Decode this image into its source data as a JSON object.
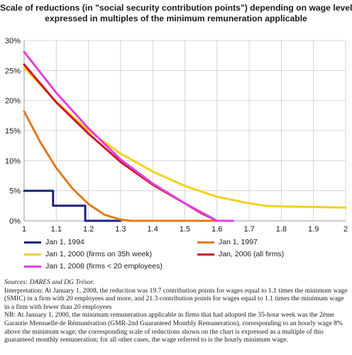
{
  "title_line1": "Scale of reductions (in \"social security contribution points\") depending on wage level,",
  "title_line2": "expressed in multiples of the minimum remuneration applicable",
  "chart_data": {
    "type": "line",
    "xlim": [
      1,
      2
    ],
    "ylim": [
      0,
      30
    ],
    "x_ticks": [
      "1",
      "1.1",
      "1.2",
      "1.3",
      "1.4",
      "1.5",
      "1.6",
      "1.7",
      "1.8",
      "1.9",
      "2"
    ],
    "y_ticks": [
      "0%",
      "5%",
      "10%",
      "15%",
      "20%",
      "25%",
      "30%"
    ],
    "grid": true,
    "legend_position": "bottom",
    "series": [
      {
        "name": "Jan 1, 1994",
        "color": "#1a237e",
        "points": [
          [
            1.0,
            5.0
          ],
          [
            1.09,
            5.0
          ],
          [
            1.09,
            2.5
          ],
          [
            1.19,
            2.5
          ],
          [
            1.19,
            0.0
          ],
          [
            1.3,
            0.0
          ]
        ]
      },
      {
        "name": "Jan 1, 1997",
        "color": "#e07b1a",
        "points": [
          [
            1.0,
            18.2
          ],
          [
            1.05,
            13.1
          ],
          [
            1.1,
            8.8
          ],
          [
            1.15,
            5.4
          ],
          [
            1.2,
            2.8
          ],
          [
            1.25,
            1.0
          ],
          [
            1.3,
            0.2
          ],
          [
            1.33,
            0.0
          ],
          [
            1.6,
            0.0
          ]
        ]
      },
      {
        "name": "Jan 1, 2000 (firms on 35h week)",
        "color": "#f2d21e",
        "points": [
          [
            1.0,
            25.5
          ],
          [
            1.1,
            19.8
          ],
          [
            1.2,
            15.0
          ],
          [
            1.3,
            11.2
          ],
          [
            1.4,
            8.2
          ],
          [
            1.5,
            5.8
          ],
          [
            1.6,
            4.0
          ],
          [
            1.7,
            2.9
          ],
          [
            1.75,
            2.5
          ],
          [
            1.8,
            2.4
          ],
          [
            1.9,
            2.3
          ],
          [
            2.0,
            2.2
          ]
        ]
      },
      {
        "name": "Jan, 2006 (all firms)",
        "color": "#d0142a",
        "points": [
          [
            1.0,
            26.0
          ],
          [
            1.1,
            19.7
          ],
          [
            1.2,
            14.5
          ],
          [
            1.3,
            9.8
          ],
          [
            1.4,
            6.0
          ],
          [
            1.5,
            2.9
          ],
          [
            1.55,
            1.3
          ],
          [
            1.6,
            0.0
          ]
        ]
      },
      {
        "name": "Jan 1,  2008 (firms < 20 employees)",
        "color": "#e040e0",
        "points": [
          [
            1.0,
            28.1
          ],
          [
            1.1,
            21.3
          ],
          [
            1.2,
            15.4
          ],
          [
            1.3,
            10.2
          ],
          [
            1.4,
            6.2
          ],
          [
            1.5,
            2.9
          ],
          [
            1.6,
            0.0
          ],
          [
            1.65,
            0.0
          ]
        ]
      }
    ]
  },
  "notes": {
    "source": "Sources: DARES and DG Trésor.",
    "interpretation": "Interpretation: At January 1, 2008, the reduction was 19.7 contribution points for wages equal to 1.1 times the minimum wage (SMIC) in a firm with 20 employees and more, and 21.3 contribution points for wages equal to 1.1 times the minimum wage in a firm with fewer than 20 employees",
    "nb": "NB: At January 1, 2000, the minimum remuneration applicable in firms that had adopted the 35-hour week was the 2ème Garantie Mensuelle de Rémunération (GMR-2nd Guaranteed Monthly Remuneration), corresponding to an hourly wage 8% above the minimum wage; the corresponding scale of reductions shown on the chart is expressed as a multiple of this guaranteed monthly remuneration; for all other cases, the wage referred to is the hourly minimum wage."
  }
}
